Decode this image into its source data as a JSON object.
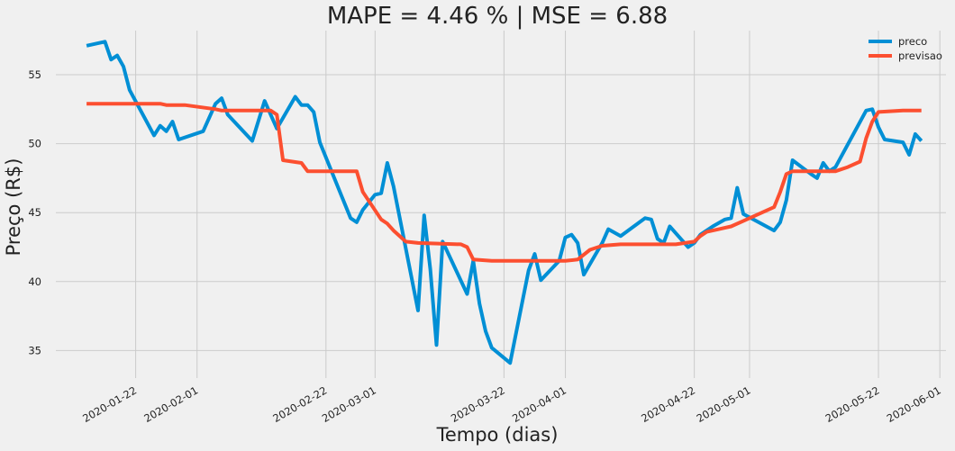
{
  "chart_data": {
    "type": "line",
    "title": "MAPE = 4.46 % | MSE = 6.88",
    "xlabel": "Tempo (dias)",
    "ylabel": "Preço (R$)",
    "xlim": [
      "2020-01-09",
      "2020-06-02"
    ],
    "ylim": [
      33,
      58.2
    ],
    "x_ticks": [
      "2020-01-22",
      "2020-02-01",
      "2020-02-22",
      "2020-03-01",
      "2020-03-22",
      "2020-04-01",
      "2020-04-22",
      "2020-05-01",
      "2020-05-22",
      "2020-06-01"
    ],
    "y_ticks": [
      35,
      40,
      45,
      50,
      55
    ],
    "grid": true,
    "legend_position": "top-right",
    "series": [
      {
        "name": "preco",
        "color": "#008fd5",
        "points": [
          [
            "2020-01-14",
            57.1
          ],
          [
            "2020-01-17",
            57.4
          ],
          [
            "2020-01-18",
            56.1
          ],
          [
            "2020-01-19",
            56.4
          ],
          [
            "2020-01-20",
            55.6
          ],
          [
            "2020-01-21",
            53.9
          ],
          [
            "2020-01-25",
            50.6
          ],
          [
            "2020-01-26",
            51.3
          ],
          [
            "2020-01-27",
            50.9
          ],
          [
            "2020-01-28",
            51.6
          ],
          [
            "2020-01-29",
            50.3
          ],
          [
            "2020-02-02",
            50.9
          ],
          [
            "2020-02-04",
            52.9
          ],
          [
            "2020-02-05",
            53.3
          ],
          [
            "2020-02-06",
            52.1
          ],
          [
            "2020-02-10",
            50.2
          ],
          [
            "2020-02-12",
            53.1
          ],
          [
            "2020-02-14",
            51.1
          ],
          [
            "2020-02-17",
            53.4
          ],
          [
            "2020-02-18",
            52.8
          ],
          [
            "2020-02-19",
            52.8
          ],
          [
            "2020-02-20",
            52.3
          ],
          [
            "2020-02-21",
            50.1
          ],
          [
            "2020-02-26",
            44.6
          ],
          [
            "2020-02-27",
            44.3
          ],
          [
            "2020-02-28",
            45.2
          ],
          [
            "2020-03-01",
            46.3
          ],
          [
            "2020-03-02",
            46.4
          ],
          [
            "2020-03-03",
            48.6
          ],
          [
            "2020-03-04",
            46.9
          ],
          [
            "2020-03-08",
            37.9
          ],
          [
            "2020-03-09",
            44.8
          ],
          [
            "2020-03-10",
            40.9
          ],
          [
            "2020-03-11",
            35.4
          ],
          [
            "2020-03-12",
            42.9
          ],
          [
            "2020-03-16",
            39.1
          ],
          [
            "2020-03-17",
            41.5
          ],
          [
            "2020-03-18",
            38.4
          ],
          [
            "2020-03-19",
            36.4
          ],
          [
            "2020-03-20",
            35.2
          ],
          [
            "2020-03-23",
            34.1
          ],
          [
            "2020-03-26",
            40.8
          ],
          [
            "2020-03-27",
            42.0
          ],
          [
            "2020-03-28",
            40.1
          ],
          [
            "2020-03-31",
            41.5
          ],
          [
            "2020-04-01",
            43.2
          ],
          [
            "2020-04-02",
            43.4
          ],
          [
            "2020-04-03",
            42.8
          ],
          [
            "2020-04-04",
            40.5
          ],
          [
            "2020-04-07",
            42.8
          ],
          [
            "2020-04-08",
            43.8
          ],
          [
            "2020-04-10",
            43.3
          ],
          [
            "2020-04-14",
            44.6
          ],
          [
            "2020-04-15",
            44.5
          ],
          [
            "2020-04-16",
            43.1
          ],
          [
            "2020-04-17",
            42.8
          ],
          [
            "2020-04-18",
            44.0
          ],
          [
            "2020-04-21",
            42.5
          ],
          [
            "2020-04-22",
            42.8
          ],
          [
            "2020-04-23",
            43.4
          ],
          [
            "2020-04-25",
            44.0
          ],
          [
            "2020-04-27",
            44.5
          ],
          [
            "2020-04-28",
            44.6
          ],
          [
            "2020-04-29",
            46.8
          ],
          [
            "2020-04-30",
            44.9
          ],
          [
            "2020-05-05",
            43.7
          ],
          [
            "2020-05-06",
            44.3
          ],
          [
            "2020-05-07",
            45.9
          ],
          [
            "2020-05-08",
            48.8
          ],
          [
            "2020-05-11",
            47.8
          ],
          [
            "2020-05-12",
            47.5
          ],
          [
            "2020-05-13",
            48.6
          ],
          [
            "2020-05-14",
            48.0
          ],
          [
            "2020-05-15",
            48.3
          ],
          [
            "2020-05-20",
            52.4
          ],
          [
            "2020-05-21",
            52.5
          ],
          [
            "2020-05-22",
            51.2
          ],
          [
            "2020-05-23",
            50.3
          ],
          [
            "2020-05-26",
            50.1
          ],
          [
            "2020-05-27",
            49.2
          ],
          [
            "2020-05-28",
            50.7
          ],
          [
            "2020-05-29",
            50.2
          ]
        ]
      },
      {
        "name": "previsao",
        "color": "#fc4f30",
        "points": [
          [
            "2020-01-14",
            52.9
          ],
          [
            "2020-01-20",
            52.9
          ],
          [
            "2020-01-26",
            52.9
          ],
          [
            "2020-01-27",
            52.8
          ],
          [
            "2020-01-30",
            52.8
          ],
          [
            "2020-02-04",
            52.5
          ],
          [
            "2020-02-05",
            52.4
          ],
          [
            "2020-02-10",
            52.4
          ],
          [
            "2020-02-13",
            52.4
          ],
          [
            "2020-02-14",
            52.1
          ],
          [
            "2020-02-15",
            48.8
          ],
          [
            "2020-02-18",
            48.6
          ],
          [
            "2020-02-19",
            48.0
          ],
          [
            "2020-02-27",
            48.0
          ],
          [
            "2020-02-28",
            46.5
          ],
          [
            "2020-03-02",
            44.5
          ],
          [
            "2020-03-03",
            44.2
          ],
          [
            "2020-03-04",
            43.7
          ],
          [
            "2020-03-06",
            42.9
          ],
          [
            "2020-03-08",
            42.8
          ],
          [
            "2020-03-15",
            42.7
          ],
          [
            "2020-03-16",
            42.5
          ],
          [
            "2020-03-17",
            41.6
          ],
          [
            "2020-03-20",
            41.5
          ],
          [
            "2020-03-26",
            41.5
          ],
          [
            "2020-04-01",
            41.5
          ],
          [
            "2020-04-03",
            41.6
          ],
          [
            "2020-04-05",
            42.3
          ],
          [
            "2020-04-07",
            42.6
          ],
          [
            "2020-04-10",
            42.7
          ],
          [
            "2020-04-19",
            42.7
          ],
          [
            "2020-04-22",
            42.9
          ],
          [
            "2020-04-23",
            43.3
          ],
          [
            "2020-04-24",
            43.6
          ],
          [
            "2020-04-26",
            43.8
          ],
          [
            "2020-04-28",
            44.0
          ],
          [
            "2020-04-30",
            44.4
          ],
          [
            "2020-05-03",
            45.0
          ],
          [
            "2020-05-05",
            45.4
          ],
          [
            "2020-05-06",
            46.5
          ],
          [
            "2020-05-07",
            47.8
          ],
          [
            "2020-05-08",
            48.0
          ],
          [
            "2020-05-15",
            48.0
          ],
          [
            "2020-05-17",
            48.3
          ],
          [
            "2020-05-19",
            48.7
          ],
          [
            "2020-05-20",
            50.4
          ],
          [
            "2020-05-21",
            51.6
          ],
          [
            "2020-05-22",
            52.3
          ],
          [
            "2020-05-26",
            52.4
          ],
          [
            "2020-05-29",
            52.4
          ]
        ]
      }
    ]
  }
}
